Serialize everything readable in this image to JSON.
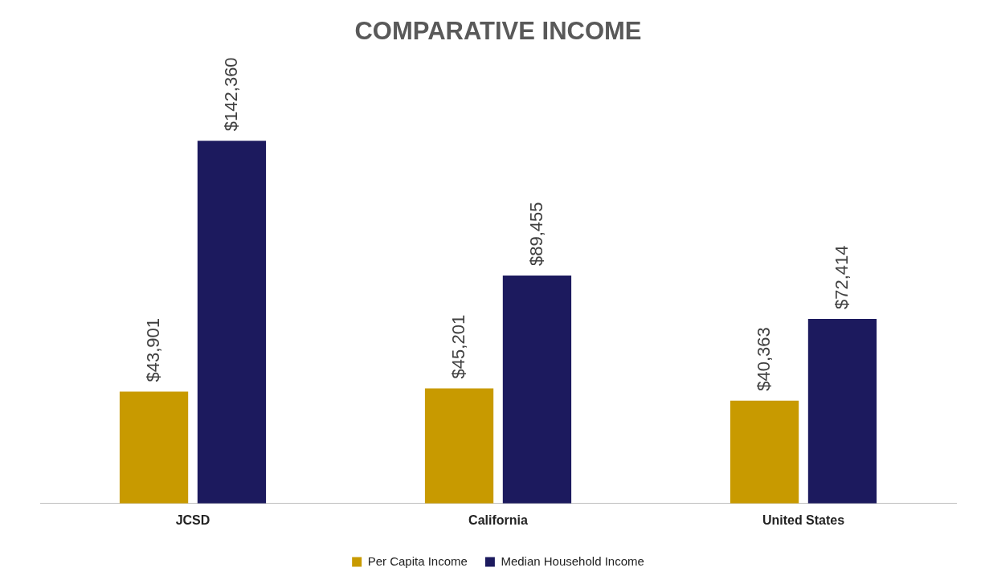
{
  "chart_data": {
    "type": "bar",
    "title": "COMPARATIVE INCOME",
    "categories": [
      "JCSD",
      "California",
      "United States"
    ],
    "series": [
      {
        "name": "Per Capita Income",
        "color": "#c89a00",
        "values": [
          43901,
          45201,
          40363
        ],
        "value_labels": [
          "$43,901",
          "$45,201",
          "$40,363"
        ]
      },
      {
        "name": "Median Household Income",
        "color": "#1c1a5e",
        "values": [
          142360,
          89455,
          72414
        ],
        "value_labels": [
          "$142,360",
          "$89,455",
          "$72,414"
        ]
      }
    ],
    "tick_labels": "x",
    "grid": false,
    "legend": "bottom"
  }
}
